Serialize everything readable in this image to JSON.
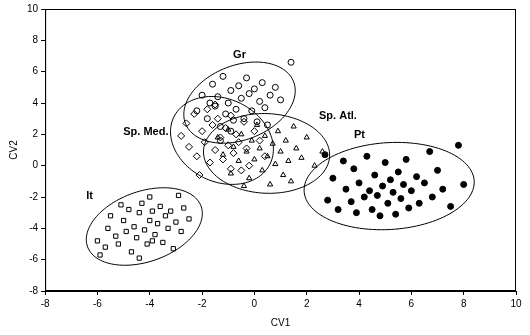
{
  "chart_data": {
    "type": "scatter",
    "x_label": "CV1",
    "y_label": "CV2",
    "xlim": [
      -8,
      10
    ],
    "xticks": [
      -8,
      -6,
      -4,
      -2,
      0,
      2,
      4,
      6,
      8,
      10
    ],
    "ylim": [
      -8,
      10
    ],
    "yticks": [
      -8,
      -6,
      -4,
      -2,
      0,
      2,
      4,
      6,
      8,
      10
    ],
    "grid": false,
    "series": [
      {
        "name": "It",
        "color": "#000000",
        "marker": "open_square",
        "x": [
          -6.0,
          -5.9,
          -5.6,
          -5.5,
          -5.3,
          -5.2,
          -5.0,
          -4.9,
          -4.8,
          -4.7,
          -4.6,
          -4.5,
          -4.4,
          -4.3,
          -4.2,
          -4.1,
          -4.0,
          -3.9,
          -3.8,
          -3.7,
          -3.6,
          -3.5,
          -3.4,
          -3.3,
          -3.2,
          -3.1,
          -3.0,
          -2.8,
          -2.7,
          -2.9,
          -5.1,
          -4.4,
          -3.9,
          -5.7,
          -2.5,
          -4.0
        ],
        "values": [
          -4.8,
          -5.7,
          -4.0,
          -3.2,
          -4.5,
          -5.0,
          -3.5,
          -4.2,
          -2.8,
          -5.5,
          -3.9,
          -4.6,
          -3.0,
          -2.4,
          -4.1,
          -5.0,
          -3.5,
          -2.9,
          -4.4,
          -3.7,
          -2.6,
          -4.9,
          -3.2,
          -4.0,
          -2.9,
          -5.3,
          -3.6,
          -4.2,
          -2.7,
          -1.9,
          -2.5,
          -5.9,
          -4.8,
          -5.2,
          -3.4,
          -2.0
        ]
      },
      {
        "name": "Sp. Med.",
        "color": "#000000",
        "marker": "open_diamond",
        "x": [
          -2.8,
          -2.6,
          -2.5,
          -2.3,
          -2.2,
          -2.0,
          -1.9,
          -1.8,
          -1.7,
          -1.6,
          -1.5,
          -1.4,
          -1.3,
          -1.2,
          -1.1,
          -1.0,
          -0.9,
          -0.8,
          -0.7,
          -0.6,
          -0.5,
          -0.4,
          -0.3,
          -0.2,
          0.0,
          0.2,
          -2.1,
          -1.5,
          -0.9,
          0.4
        ],
        "values": [
          1.9,
          2.7,
          1.2,
          3.3,
          0.6,
          2.2,
          1.5,
          3.6,
          0.2,
          2.6,
          1.0,
          3.0,
          1.8,
          0.4,
          2.4,
          1.3,
          3.2,
          0.8,
          2.0,
          1.5,
          -0.3,
          2.8,
          1.1,
          0.0,
          2.2,
          1.6,
          -0.6,
          3.9,
          -0.2,
          0.6
        ]
      },
      {
        "name": "Gr",
        "color": "#000000",
        "marker": "open_circle",
        "x": [
          -2.0,
          -1.8,
          -1.6,
          -1.5,
          -1.4,
          -1.3,
          -1.2,
          -1.1,
          -1.0,
          -0.9,
          -0.8,
          -0.7,
          -0.6,
          -0.5,
          -0.4,
          -0.3,
          -0.2,
          -0.1,
          0.0,
          0.2,
          0.3,
          0.4,
          0.6,
          0.8,
          1.0,
          1.4,
          0.5,
          -1.7,
          -0.9,
          0.1,
          -2.2,
          -1.3
        ],
        "values": [
          4.5,
          3.0,
          5.2,
          3.8,
          4.4,
          2.5,
          5.7,
          3.3,
          4.0,
          4.8,
          2.9,
          3.6,
          5.1,
          4.3,
          3.0,
          5.6,
          4.6,
          3.5,
          4.9,
          4.1,
          5.3,
          3.7,
          4.5,
          5.0,
          4.2,
          6.6,
          2.6,
          4.0,
          2.2,
          2.8,
          3.5,
          1.6
        ]
      },
      {
        "name": "Sp. Atl.",
        "color": "#000000",
        "marker": "open_triangle",
        "x": [
          -1.4,
          -1.2,
          -1.0,
          -0.9,
          -0.8,
          -0.6,
          -0.5,
          -0.3,
          -0.2,
          -0.1,
          0.0,
          0.1,
          0.2,
          0.3,
          0.4,
          0.5,
          0.6,
          0.7,
          0.8,
          0.9,
          1.0,
          1.1,
          1.2,
          1.3,
          1.4,
          1.6,
          1.8,
          2.0,
          2.3,
          2.6,
          -0.4,
          1.5
        ],
        "values": [
          1.8,
          0.7,
          2.3,
          -0.5,
          1.2,
          0.3,
          2.0,
          0.9,
          -0.8,
          1.6,
          0.4,
          2.6,
          1.1,
          -0.3,
          1.9,
          0.6,
          -1.2,
          1.4,
          0.1,
          2.2,
          0.9,
          -0.6,
          1.6,
          0.3,
          -1.0,
          1.1,
          0.5,
          1.8,
          0.0,
          0.9,
          -1.3,
          2.5
        ]
      },
      {
        "name": "Pt",
        "color": "#000000",
        "marker": "filled_circle",
        "x": [
          2.8,
          3.0,
          3.2,
          3.4,
          3.5,
          3.7,
          3.8,
          3.9,
          4.0,
          4.2,
          4.3,
          4.4,
          4.5,
          4.6,
          4.7,
          4.8,
          4.9,
          5.0,
          5.1,
          5.2,
          5.3,
          5.4,
          5.5,
          5.6,
          5.7,
          5.8,
          5.9,
          6.0,
          6.2,
          6.3,
          6.5,
          6.7,
          6.8,
          7.0,
          7.2,
          7.5,
          7.8,
          8.0,
          2.7
        ],
        "values": [
          -2.2,
          -0.8,
          -2.8,
          0.3,
          -1.5,
          -2.3,
          -0.2,
          -3.0,
          -1.1,
          -2.0,
          0.6,
          -1.6,
          -2.8,
          -0.6,
          -1.9,
          -3.2,
          -1.3,
          0.2,
          -2.4,
          -0.9,
          -1.7,
          -3.1,
          -0.4,
          -2.1,
          -1.2,
          0.4,
          -2.7,
          -1.6,
          -0.7,
          -2.4,
          -1.1,
          0.9,
          -2.0,
          -0.3,
          -1.5,
          -2.6,
          1.3,
          -1.2,
          0.7
        ]
      }
    ]
  }
}
